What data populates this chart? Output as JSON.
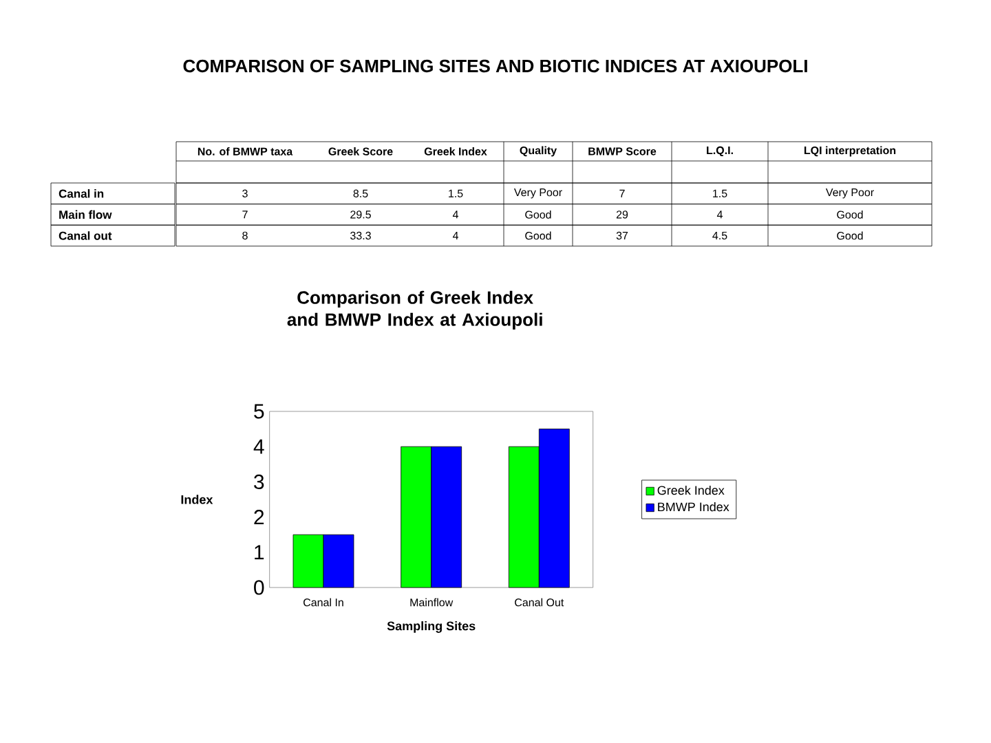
{
  "chart_data": [
    {
      "type": "other",
      "title": "COMPARISON OF SAMPLING SITES AND BIOTIC INDICES AT AXIOUPOLI",
      "categories": [
        "No. of BMWP taxa",
        "Greek Score",
        "Greek Index",
        "Quality",
        "BMWP Score",
        "L.Q.I.",
        "LQI interpretation"
      ],
      "y_categories": [
        "Canal in",
        "Main flow",
        "Canal out"
      ],
      "cell_labels": [
        [
          "3",
          "8.5",
          "1.5",
          "Very Poor",
          "7",
          "1.5",
          "Very Poor"
        ],
        [
          "7",
          "29.5",
          "4",
          "Good",
          "29",
          "4",
          "Good"
        ],
        [
          "8",
          "33.3",
          "4",
          "Good",
          "37",
          "4.5",
          "Good"
        ]
      ]
    },
    {
      "type": "bar",
      "title": "Comparison of Greek Index and BMWP Index at Axioupoli",
      "xlabel": "Sampling Sites",
      "ylabel": "Index",
      "categories": [
        "Canal In",
        "Mainflow",
        "Canal Out"
      ],
      "series": [
        {
          "name": "Greek Index",
          "color": "#00ff00",
          "values": [
            1.5,
            4,
            4
          ]
        },
        {
          "name": "BMWP Index",
          "color": "#0000ff",
          "values": [
            1.5,
            4,
            4.5
          ]
        }
      ],
      "ylim": [
        0,
        5
      ],
      "yticks": [
        0,
        1,
        2,
        3,
        4,
        5
      ],
      "legend": "right"
    }
  ]
}
